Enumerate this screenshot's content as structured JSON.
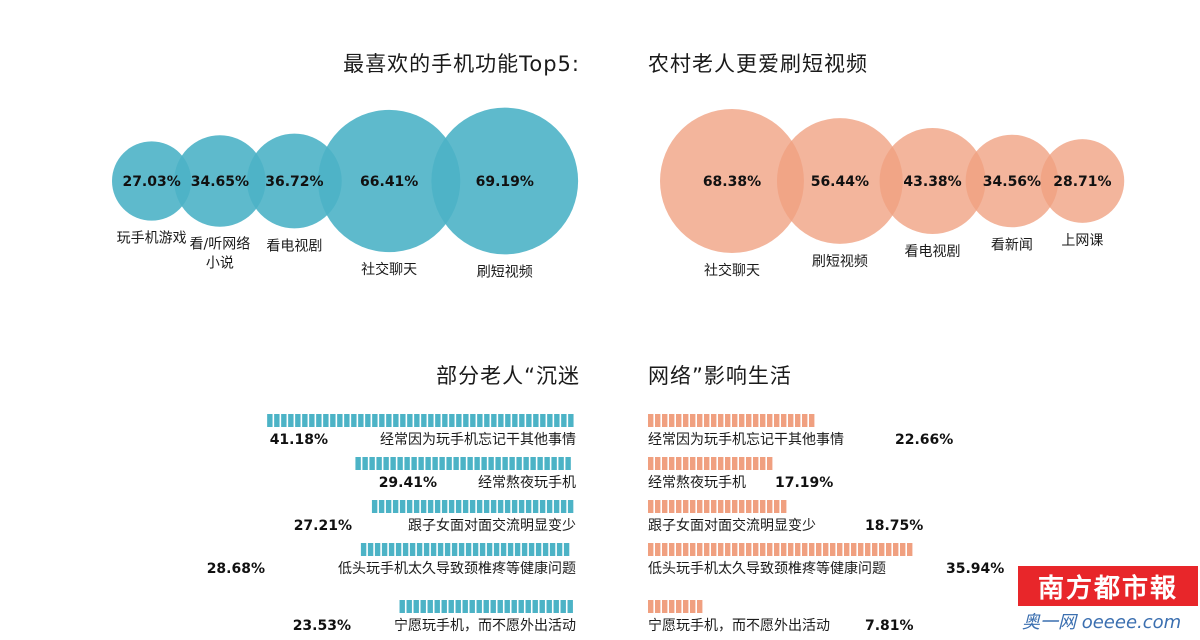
{
  "headings": {
    "top_left": "最喜欢的手机功能Top5:",
    "top_right": "农村老人更爱刷短视频",
    "bottom_left": "部分老人“沉迷",
    "bottom_right": "网络”影响生活"
  },
  "chart_data": [
    {
      "type": "bubble",
      "title": "最喜欢的手机功能Top5:",
      "categories": [
        "玩手机游戏",
        "看/听网络\n小说",
        "看电视剧",
        "社交聊天",
        "刷短视频"
      ],
      "values": [
        27.03,
        34.65,
        36.72,
        66.41,
        69.19
      ],
      "value_labels": [
        "27.03%",
        "34.65%",
        "36.72%",
        "66.41%",
        "69.19%"
      ],
      "color": "#4cb3c6"
    },
    {
      "type": "bubble",
      "title": "农村老人更爱刷短视频",
      "categories": [
        "社交聊天",
        "刷短视频",
        "看电视剧",
        "看新闻",
        "上网课"
      ],
      "values": [
        68.38,
        56.44,
        43.38,
        34.56,
        28.71
      ],
      "value_labels": [
        "68.38%",
        "56.44%",
        "43.38%",
        "34.56%",
        "28.71%"
      ],
      "color": "#f0a080"
    },
    {
      "type": "bar",
      "orientation": "horizontal",
      "direction": "right-to-left",
      "categories": [
        "经常因为玩手机忘记干其他事情",
        "经常熬夜玩手机",
        "跟子女面对面交流明显变少",
        "低头玩手机太久导致颈椎疼等健康问题",
        "宁愿玩手机，而不愿外出活动"
      ],
      "values": [
        41.18,
        29.41,
        27.21,
        28.68,
        23.53
      ],
      "value_labels": [
        "41.18%",
        "29.41%",
        "27.21%",
        "28.68%",
        "23.53%"
      ],
      "color": "#4cb3c6"
    },
    {
      "type": "bar",
      "orientation": "horizontal",
      "direction": "left-to-right",
      "categories": [
        "经常因为玩手机忘记干其他事情",
        "经常熬夜玩手机",
        "跟子女面对面交流明显变少",
        "低头玩手机太久导致颈椎疼等健康问题",
        "宁愿玩手机，而不愿外出活动"
      ],
      "values": [
        22.66,
        17.19,
        18.75,
        35.94,
        7.81
      ],
      "value_labels": [
        "22.66%",
        "17.19%",
        "18.75%",
        "35.94%",
        "7.81%"
      ],
      "color": "#f0a080"
    }
  ],
  "branding": {
    "logo": "南方都市報",
    "watermark": "奥一网 oeeee.com"
  }
}
